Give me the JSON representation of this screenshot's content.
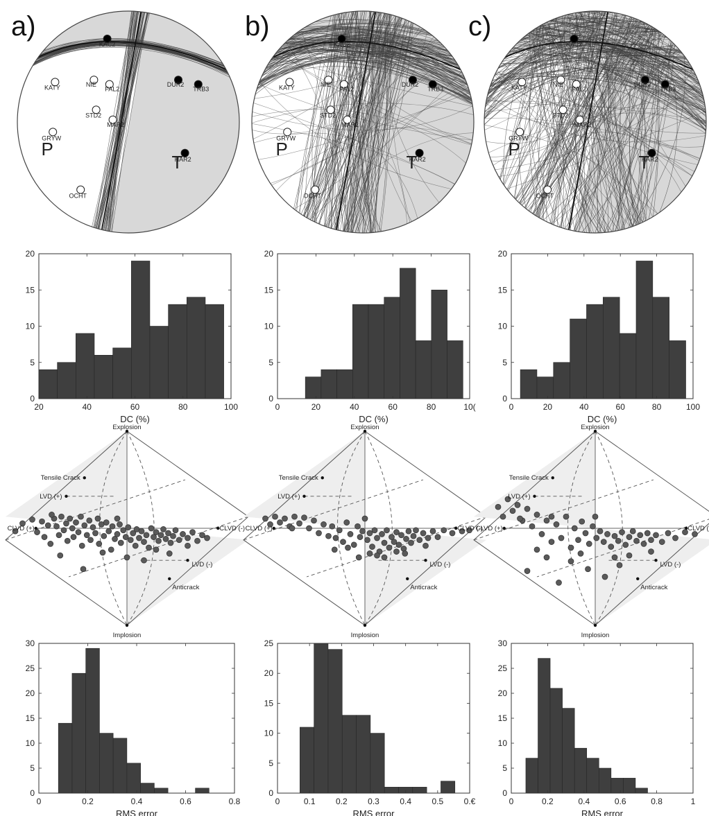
{
  "panel_labels": [
    "a)",
    "b)",
    "c)"
  ],
  "colors": {
    "bar": "#3f3f3f",
    "bar_edge": "#262626",
    "shade": "#d8d8d8",
    "circle_edge": "#444444",
    "curve": "#404040",
    "dot": "#555555",
    "dashed": "#555555"
  },
  "chart_data": [
    {
      "panel": "a)",
      "type": "stereonet",
      "stations": [
        {
          "name": "KAC2",
          "polarity": "compression"
        },
        {
          "name": "KATY",
          "polarity": "dilatation"
        },
        {
          "name": "NIE",
          "polarity": "dilatation"
        },
        {
          "name": "FAL2",
          "polarity": "dilatation"
        },
        {
          "name": "DUR2",
          "polarity": "compression"
        },
        {
          "name": "TRB3",
          "polarity": "compression"
        },
        {
          "name": "STD2",
          "polarity": "dilatation"
        },
        {
          "name": "MAR2",
          "polarity": "dilatation"
        },
        {
          "name": "GRYW",
          "polarity": "dilatation"
        },
        {
          "name": "HAR2",
          "polarity": "compression"
        },
        {
          "name": "OCHT",
          "polarity": "dilatation"
        }
      ],
      "axes": [
        "P",
        "T"
      ]
    },
    {
      "panel": "b)",
      "type": "stereonet",
      "stations": [
        {
          "name": "KAC2",
          "polarity": "compression"
        },
        {
          "name": "KATY",
          "polarity": "dilatation"
        },
        {
          "name": "NIE",
          "polarity": "dilatation"
        },
        {
          "name": "FAL2",
          "polarity": "dilatation"
        },
        {
          "name": "DUR2",
          "polarity": "compression"
        },
        {
          "name": "TRB3",
          "polarity": "compression"
        },
        {
          "name": "STD2",
          "polarity": "dilatation"
        },
        {
          "name": "MAR2",
          "polarity": "dilatation"
        },
        {
          "name": "GRYW",
          "polarity": "dilatation"
        },
        {
          "name": "HAR2",
          "polarity": "compression"
        },
        {
          "name": "OCHT",
          "polarity": "dilatation"
        }
      ],
      "axes": [
        "P",
        "T"
      ]
    },
    {
      "panel": "c)",
      "type": "stereonet",
      "stations": [
        {
          "name": "KAC2",
          "polarity": "compression"
        },
        {
          "name": "KATY",
          "polarity": "dilatation"
        },
        {
          "name": "NIE",
          "polarity": "dilatation"
        },
        {
          "name": "FAL2",
          "polarity": "dilatation"
        },
        {
          "name": "DUR2",
          "polarity": "compression"
        },
        {
          "name": "TRB3",
          "polarity": "compression"
        },
        {
          "name": "STD2",
          "polarity": "dilatation"
        },
        {
          "name": "MAR2",
          "polarity": "dilatation"
        },
        {
          "name": "GRYW",
          "polarity": "dilatation"
        },
        {
          "name": "HAR2",
          "polarity": "compression"
        },
        {
          "name": "OCHT",
          "polarity": "dilatation"
        }
      ],
      "axes": [
        "P",
        "T"
      ]
    },
    {
      "panel": "a)",
      "type": "bar",
      "xlabel": "DC (%)",
      "ylabel": "",
      "xlim": [
        20,
        100
      ],
      "ylim": [
        0,
        20
      ],
      "xticks": [
        "20",
        "40",
        "60",
        "80",
        "100"
      ],
      "yticks": [
        "0",
        "5",
        "10",
        "15",
        "20"
      ],
      "bin_edges": [
        20,
        27.7,
        35.4,
        43.1,
        50.8,
        58.5,
        66.2,
        73.9,
        81.6,
        89.3,
        97
      ],
      "values": [
        4,
        5,
        9,
        6,
        7,
        19,
        10,
        13,
        14,
        13
      ]
    },
    {
      "panel": "b)",
      "type": "bar",
      "xlabel": "DC (%)",
      "ylabel": "",
      "xlim": [
        0,
        100
      ],
      "ylim": [
        0,
        20
      ],
      "xticks": [
        "0",
        "20",
        "40",
        "60",
        "80",
        "10("
      ],
      "yticks": [
        "0",
        "5",
        "10",
        "15",
        "20"
      ],
      "bin_edges": [
        14.5,
        22.7,
        30.9,
        39.1,
        47.3,
        55.5,
        63.7,
        71.9,
        80.1,
        88.3,
        96.5
      ],
      "values": [
        3,
        4,
        4,
        13,
        13,
        14,
        18,
        8,
        15,
        8
      ]
    },
    {
      "panel": "c)",
      "type": "bar",
      "xlabel": "DC (%)",
      "ylabel": "",
      "xlim": [
        0,
        100
      ],
      "ylim": [
        0,
        20
      ],
      "xticks": [
        "0",
        "20",
        "40",
        "60",
        "80",
        "100"
      ],
      "yticks": [
        "0",
        "5",
        "10",
        "15",
        "20"
      ],
      "bin_edges": [
        5,
        14.1,
        23.2,
        32.3,
        41.4,
        50.5,
        59.6,
        68.7,
        77.8,
        86.9,
        96
      ],
      "values": [
        4,
        3,
        5,
        11,
        13,
        14,
        9,
        19,
        14,
        8
      ]
    },
    {
      "panel": "a)",
      "type": "scatter",
      "subtype": "source-type plot",
      "labels": [
        "Explosion",
        "Tensile Crack",
        "LVD (+)",
        "CLVD (+)",
        "CLVD (-)",
        "LVD (-)",
        "Anticrack",
        "Implosion"
      ],
      "points": [
        [
          -0.92,
          -0.03
        ],
        [
          -0.78,
          0.09
        ],
        [
          -0.74,
          -0.04
        ],
        [
          -0.7,
          0.07
        ],
        [
          -0.68,
          -0.09
        ],
        [
          -0.65,
          0.03
        ],
        [
          -0.63,
          -0.16
        ],
        [
          -0.6,
          0.1
        ],
        [
          -0.58,
          0.02
        ],
        [
          -0.56,
          -0.07
        ],
        [
          -0.54,
          0.12
        ],
        [
          -0.52,
          -0.02
        ],
        [
          -0.5,
          0.05
        ],
        [
          -0.49,
          -0.13
        ],
        [
          -0.47,
          0.1
        ],
        [
          -0.45,
          0.0
        ],
        [
          -0.44,
          -0.09
        ],
        [
          -0.42,
          0.06
        ],
        [
          -0.4,
          -0.04
        ],
        [
          -0.38,
          0.12
        ],
        [
          -0.37,
          -0.18
        ],
        [
          -0.35,
          0.03
        ],
        [
          -0.33,
          -0.07
        ],
        [
          -0.31,
          0.08
        ],
        [
          -0.3,
          -0.12
        ],
        [
          -0.28,
          0.01
        ],
        [
          -0.26,
          -0.05
        ],
        [
          -0.24,
          0.1
        ],
        [
          -0.23,
          -0.16
        ],
        [
          -0.21,
          0.04
        ],
        [
          -0.19,
          -0.08
        ],
        [
          -0.17,
          0.06
        ],
        [
          -0.15,
          -0.03
        ],
        [
          -0.13,
          -0.22
        ],
        [
          -0.12,
          0.02
        ],
        [
          -0.1,
          -0.11
        ],
        [
          -0.08,
          -0.06
        ],
        [
          -0.06,
          0.04
        ],
        [
          -0.05,
          -0.15
        ],
        [
          -0.03,
          -0.02
        ],
        [
          -0.01,
          -0.09
        ],
        [
          0.01,
          0.01
        ],
        [
          0.03,
          -0.12
        ],
        [
          0.05,
          -0.05
        ],
        [
          0.07,
          -0.18
        ],
        [
          0.08,
          -0.01
        ],
        [
          0.1,
          -0.1
        ],
        [
          0.12,
          -0.03
        ],
        [
          0.14,
          -0.14
        ],
        [
          0.16,
          -0.07
        ],
        [
          0.18,
          -0.2
        ],
        [
          0.2,
          0.0
        ],
        [
          0.22,
          -0.09
        ],
        [
          0.24,
          -0.04
        ],
        [
          0.26,
          -0.13
        ],
        [
          0.28,
          -0.07
        ],
        [
          0.3,
          -0.01
        ],
        [
          0.32,
          -0.11
        ],
        [
          0.34,
          -0.05
        ],
        [
          0.36,
          -0.15
        ],
        [
          0.38,
          -0.08
        ],
        [
          0.4,
          -0.02
        ],
        [
          0.43,
          -0.12
        ],
        [
          0.46,
          -0.06
        ],
        [
          0.5,
          -0.1
        ],
        [
          0.54,
          -0.04
        ],
        [
          0.58,
          -0.13
        ],
        [
          0.62,
          -0.07
        ],
        [
          0.66,
          -0.1
        ],
        [
          -0.86,
          0.05
        ],
        [
          -0.36,
          -0.42
        ],
        [
          -0.55,
          -0.28
        ],
        [
          0.14,
          -0.33
        ],
        [
          0.0,
          -0.3
        ],
        [
          -0.2,
          -0.25
        ],
        [
          0.35,
          -0.26
        ],
        [
          0.5,
          -0.18
        ],
        [
          -0.62,
          0.14
        ],
        [
          -0.08,
          0.1
        ],
        [
          0.24,
          -0.22
        ]
      ]
    },
    {
      "panel": "b)",
      "type": "scatter",
      "subtype": "source-type plot",
      "labels": [
        "Explosion",
        "Tensile Crack",
        "LVD (+)",
        "CLVD (+)",
        "CLVD (-)",
        "LVD (-)",
        "Anticrack",
        "Implosion"
      ],
      "points": [
        [
          -0.82,
          0.1
        ],
        [
          -0.78,
          0.04
        ],
        [
          -0.74,
          0.12
        ],
        [
          -0.7,
          0.06
        ],
        [
          -0.66,
          0.1
        ],
        [
          -0.62,
          0.02
        ],
        [
          -0.58,
          0.12
        ],
        [
          -0.54,
          0.05
        ],
        [
          -0.5,
          0.11
        ],
        [
          -0.46,
          0.0
        ],
        [
          -0.42,
          0.08
        ],
        [
          -0.38,
          -0.05
        ],
        [
          -0.34,
          0.04
        ],
        [
          -0.3,
          -0.08
        ],
        [
          -0.27,
          0.02
        ],
        [
          -0.24,
          -0.1
        ],
        [
          -0.21,
          -0.02
        ],
        [
          -0.18,
          -0.14
        ],
        [
          -0.15,
          0.06
        ],
        [
          -0.12,
          -0.06
        ],
        [
          -0.09,
          -0.17
        ],
        [
          -0.06,
          0.02
        ],
        [
          -0.04,
          -0.09
        ],
        [
          -0.02,
          -0.03
        ],
        [
          0.0,
          0.1
        ],
        [
          0.02,
          -0.12
        ],
        [
          0.04,
          -0.05
        ],
        [
          0.06,
          -0.19
        ],
        [
          0.08,
          -0.02
        ],
        [
          0.1,
          -0.1
        ],
        [
          0.12,
          -0.24
        ],
        [
          0.14,
          -0.06
        ],
        [
          0.16,
          -0.15
        ],
        [
          0.18,
          -0.02
        ],
        [
          0.2,
          -0.2
        ],
        [
          0.22,
          -0.09
        ],
        [
          0.24,
          -0.14
        ],
        [
          0.26,
          -0.04
        ],
        [
          0.28,
          -0.17
        ],
        [
          0.3,
          -0.07
        ],
        [
          0.32,
          -0.21
        ],
        [
          0.34,
          -0.11
        ],
        [
          0.36,
          -0.03
        ],
        [
          0.38,
          -0.15
        ],
        [
          0.4,
          -0.08
        ],
        [
          0.42,
          -0.02
        ],
        [
          0.45,
          -0.12
        ],
        [
          0.48,
          -0.05
        ],
        [
          0.52,
          -0.1
        ],
        [
          0.56,
          -0.03
        ],
        [
          0.6,
          -0.09
        ],
        [
          0.65,
          -0.02
        ],
        [
          0.72,
          -0.05
        ],
        [
          0.8,
          -0.03
        ],
        [
          0.86,
          -0.02
        ],
        [
          -0.05,
          -0.3
        ],
        [
          0.1,
          -0.28
        ],
        [
          -0.25,
          -0.22
        ],
        [
          0.16,
          -0.3
        ],
        [
          0.26,
          -0.24
        ],
        [
          0.04,
          -0.26
        ],
        [
          -0.14,
          -0.2
        ],
        [
          0.33,
          -0.26
        ],
        [
          -0.6,
          0.0
        ],
        [
          0.5,
          -0.18
        ]
      ]
    },
    {
      "panel": "c)",
      "type": "scatter",
      "subtype": "source-type plot",
      "labels": [
        "Explosion",
        "Tensile Crack",
        "LVD (+)",
        "CLVD (+)",
        "CLVD (-)",
        "LVD (-)",
        "Anticrack",
        "Implosion"
      ],
      "points": [
        [
          -0.8,
          0.22
        ],
        [
          -0.76,
          0.12
        ],
        [
          -0.72,
          0.3
        ],
        [
          -0.68,
          0.18
        ],
        [
          -0.64,
          0.24
        ],
        [
          -0.6,
          0.08
        ],
        [
          -0.56,
          0.2
        ],
        [
          -0.52,
          0.02
        ],
        [
          -0.48,
          0.14
        ],
        [
          -0.44,
          -0.06
        ],
        [
          -0.4,
          0.08
        ],
        [
          -0.36,
          -0.14
        ],
        [
          -0.32,
          0.04
        ],
        [
          -0.28,
          -0.1
        ],
        [
          -0.24,
          0.12
        ],
        [
          -0.2,
          -0.2
        ],
        [
          -0.17,
          0.0
        ],
        [
          -0.14,
          -0.12
        ],
        [
          -0.11,
          0.07
        ],
        [
          -0.08,
          -0.05
        ],
        [
          -0.05,
          -0.16
        ],
        [
          -0.02,
          0.02
        ],
        [
          0.01,
          -0.1
        ],
        [
          0.04,
          -0.03
        ],
        [
          0.07,
          -0.14
        ],
        [
          0.1,
          -0.06
        ],
        [
          0.13,
          -0.19
        ],
        [
          0.16,
          -0.08
        ],
        [
          0.19,
          -0.13
        ],
        [
          0.22,
          -0.04
        ],
        [
          0.25,
          -0.17
        ],
        [
          0.28,
          -0.09
        ],
        [
          0.31,
          -0.03
        ],
        [
          0.34,
          -0.13
        ],
        [
          0.37,
          -0.07
        ],
        [
          0.4,
          -0.16
        ],
        [
          0.43,
          -0.05
        ],
        [
          0.46,
          -0.12
        ],
        [
          0.5,
          -0.07
        ],
        [
          0.55,
          -0.14
        ],
        [
          0.6,
          -0.05
        ],
        [
          0.66,
          -0.1
        ],
        [
          0.74,
          -0.04
        ],
        [
          0.82,
          -0.06
        ],
        [
          -0.56,
          -0.44
        ],
        [
          -0.3,
          -0.56
        ],
        [
          -0.06,
          -0.42
        ],
        [
          0.16,
          -0.3
        ],
        [
          -0.2,
          -0.34
        ],
        [
          0.08,
          -0.5
        ],
        [
          -0.4,
          -0.3
        ],
        [
          0.28,
          -0.28
        ],
        [
          -0.12,
          -0.26
        ],
        [
          -0.62,
          0.1
        ],
        [
          0.0,
          0.12
        ],
        [
          -0.36,
          0.12
        ],
        [
          0.46,
          -0.24
        ],
        [
          -0.48,
          -0.22
        ],
        [
          0.2,
          -0.38
        ]
      ]
    },
    {
      "panel": "a)",
      "type": "bar",
      "xlabel": "RMS error",
      "ylabel": "",
      "xlim": [
        0,
        0.8
      ],
      "ylim": [
        0,
        30
      ],
      "xticks": [
        "0",
        "0.2",
        "0.4",
        "0.6",
        "0.8"
      ],
      "yticks": [
        "0",
        "5",
        "10",
        "15",
        "20",
        "25",
        "30"
      ],
      "bin_edges": [
        0.08,
        0.136,
        0.192,
        0.248,
        0.304,
        0.36,
        0.416,
        0.472,
        0.528,
        0.584,
        0.64,
        0.696
      ],
      "values": [
        14,
        24,
        29,
        12,
        11,
        6,
        2,
        1,
        0,
        0,
        1
      ]
    },
    {
      "panel": "b)",
      "type": "bar",
      "xlabel": "RMS error",
      "ylabel": "",
      "xlim": [
        0,
        0.6
      ],
      "ylim": [
        0,
        25
      ],
      "xticks": [
        "0",
        "0.1",
        "0.2",
        "0.3",
        "0.4",
        "0.5",
        "0.€"
      ],
      "yticks": [
        "0",
        "5",
        "10",
        "15",
        "20",
        "25"
      ],
      "bin_edges": [
        0.07,
        0.114,
        0.158,
        0.202,
        0.246,
        0.29,
        0.334,
        0.378,
        0.422,
        0.466,
        0.51,
        0.554
      ],
      "values": [
        11,
        25,
        24,
        13,
        13,
        10,
        1,
        1,
        1,
        0,
        2
      ]
    },
    {
      "panel": "c)",
      "type": "bar",
      "xlabel": "RMS error",
      "ylabel": "",
      "xlim": [
        0,
        1
      ],
      "ylim": [
        0,
        30
      ],
      "xticks": [
        "0",
        "0.2",
        "0.4",
        "0.6",
        "0.8",
        "1"
      ],
      "yticks": [
        "0",
        "5",
        "10",
        "15",
        "20",
        "25",
        "30"
      ],
      "bin_edges": [
        0.08,
        0.147,
        0.214,
        0.281,
        0.348,
        0.415,
        0.482,
        0.549,
        0.616,
        0.683,
        0.75,
        0.817
      ],
      "values": [
        7,
        27,
        21,
        17,
        9,
        7,
        5,
        3,
        3,
        1,
        0
      ]
    }
  ]
}
